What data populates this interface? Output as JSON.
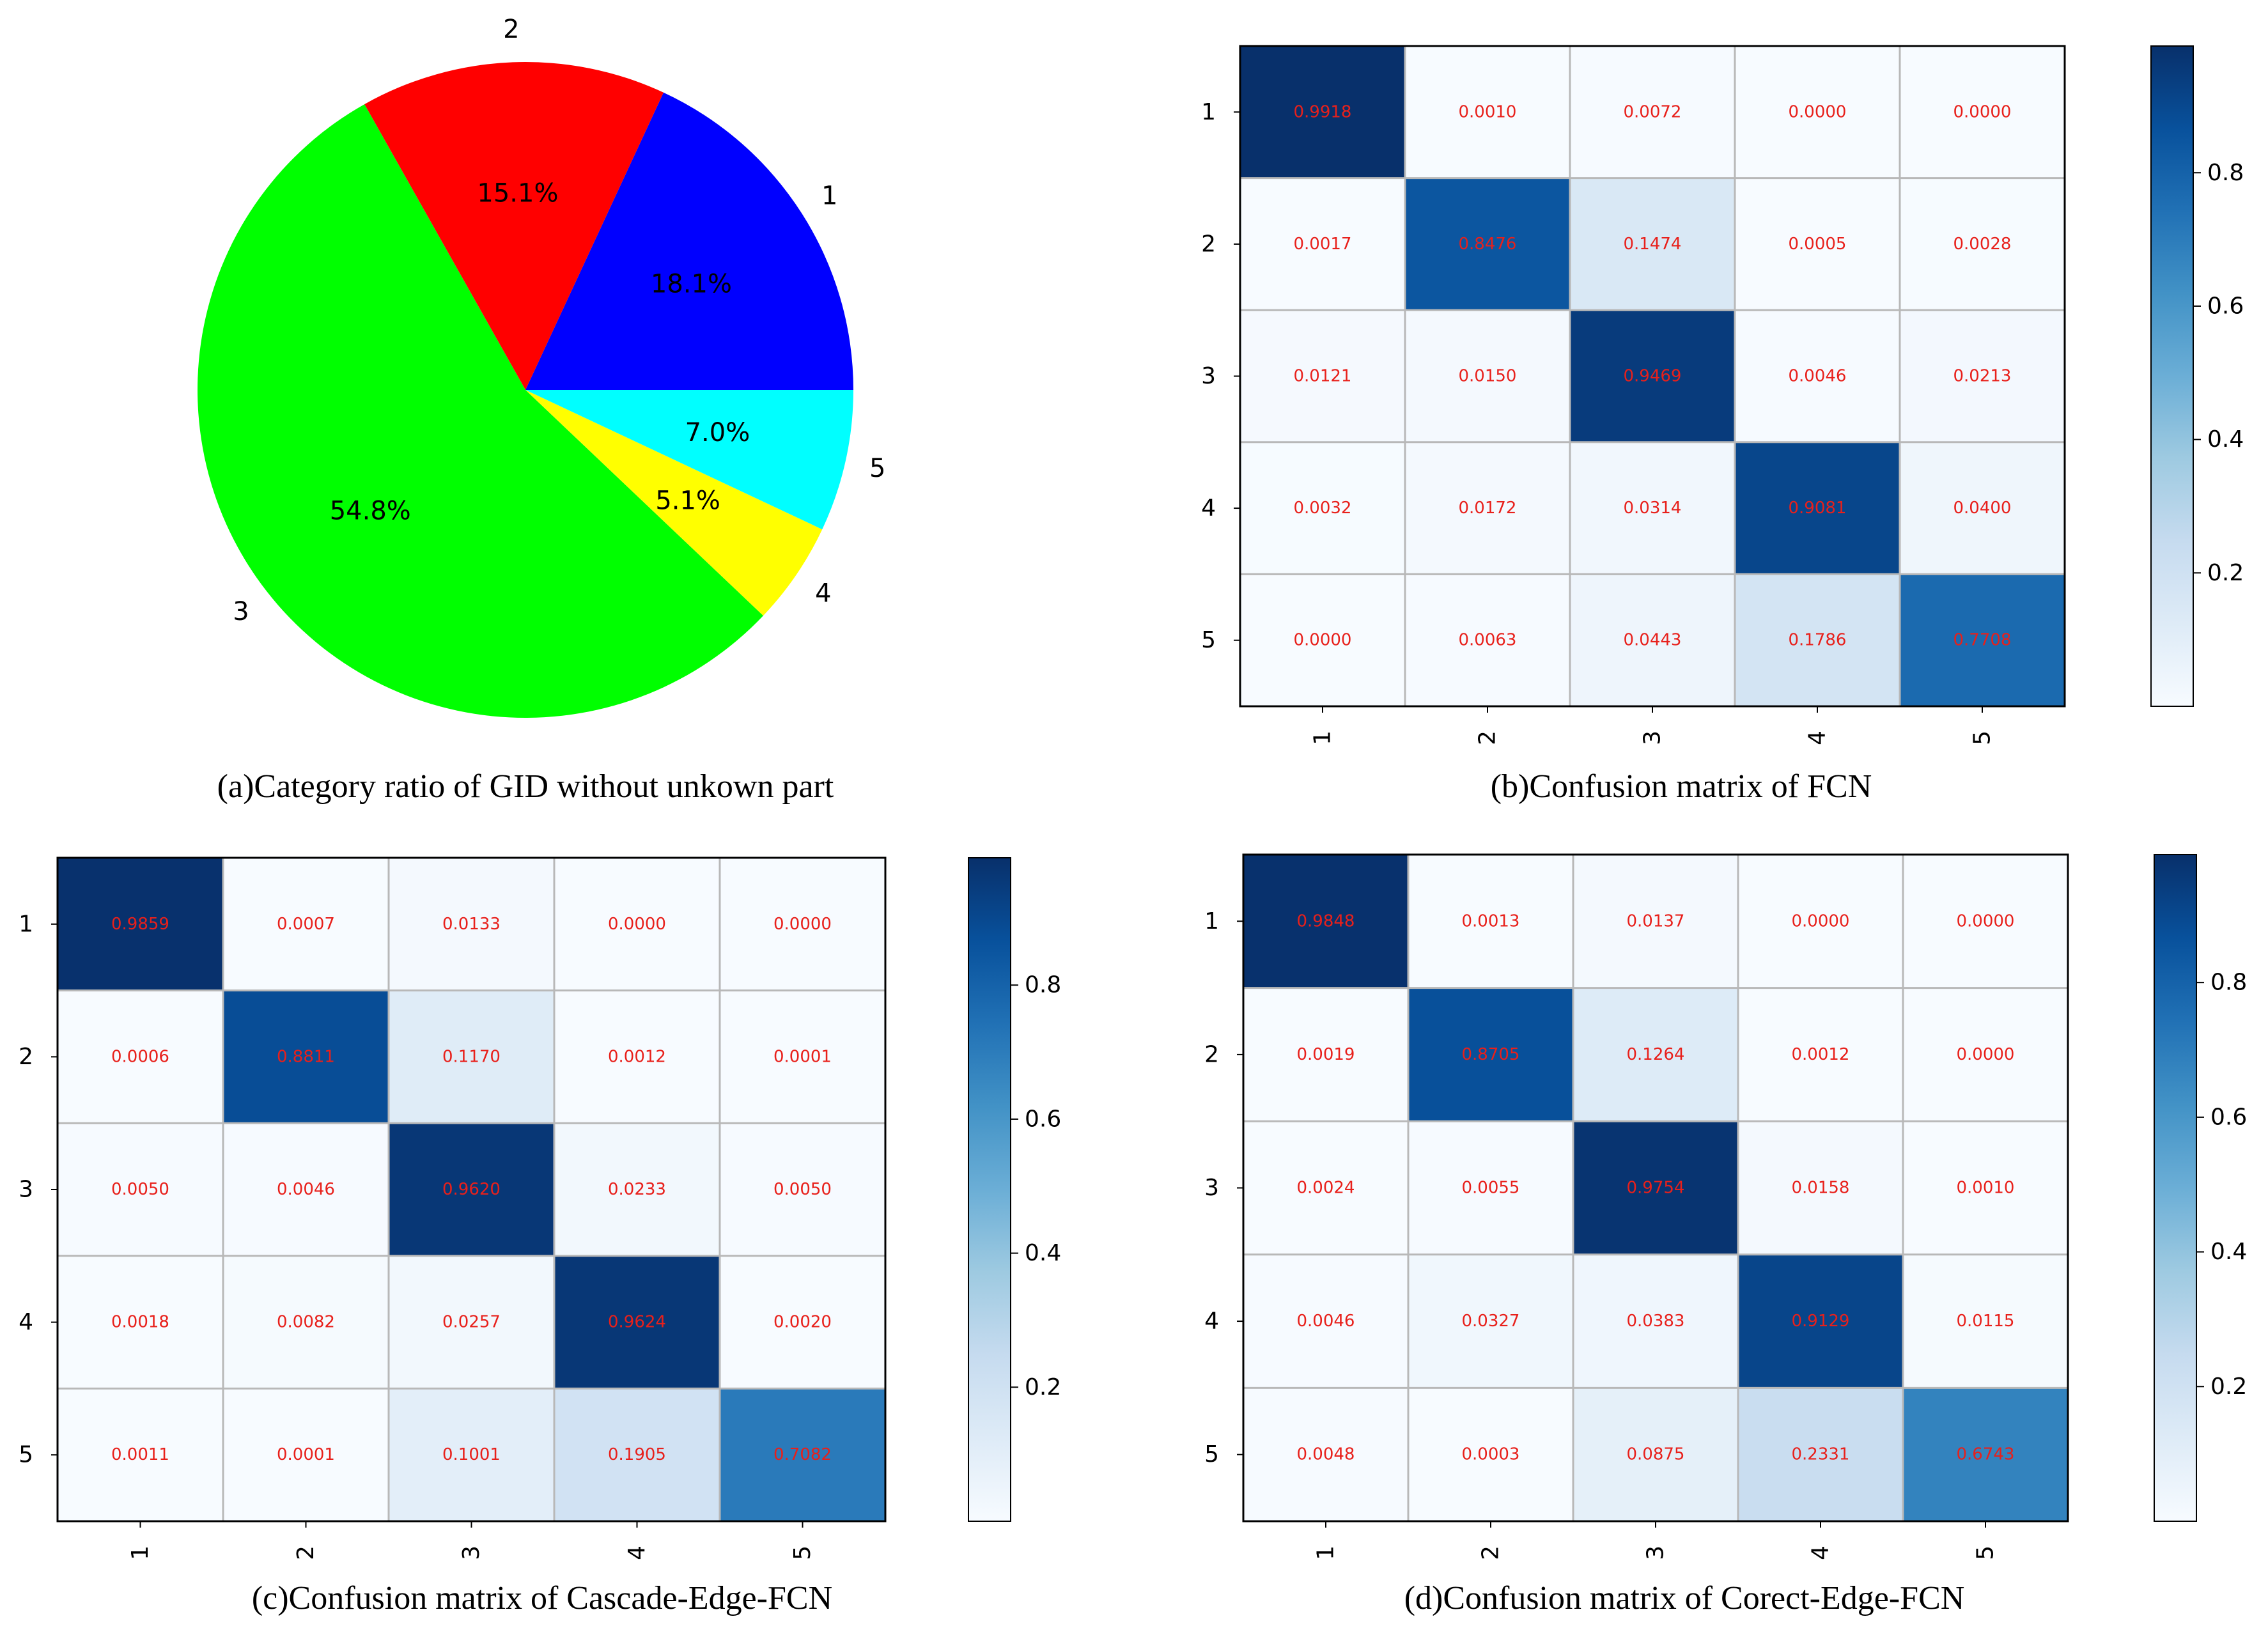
{
  "colors": {
    "cell_text": "#e8201b",
    "grid_line": "#b8b8b8",
    "colormap": "Blues"
  },
  "chart_data": [
    {
      "id": "a",
      "type": "pie",
      "title": "",
      "caption": "(a)Category ratio of GID without unkown part",
      "labels": [
        "1",
        "2",
        "3",
        "4",
        "5"
      ],
      "values": [
        18.1,
        15.1,
        54.8,
        5.1,
        7.0
      ],
      "pct_labels": [
        "18.1%",
        "15.1%",
        "54.8%",
        "5.1%",
        "7.0%"
      ],
      "colors": [
        "#0000ff",
        "#ff0000",
        "#00ff00",
        "#ffff00",
        "#00ffff"
      ],
      "start_angle_deg": 0,
      "direction": "counterclockwise"
    },
    {
      "id": "b",
      "type": "heatmap",
      "caption": "(b)Confusion matrix of  FCN",
      "row_labels": [
        "1",
        "2",
        "3",
        "4",
        "5"
      ],
      "col_labels": [
        "1",
        "2",
        "3",
        "4",
        "5"
      ],
      "values": [
        [
          0.9918,
          0.001,
          0.0072,
          0.0,
          0.0
        ],
        [
          0.0017,
          0.8476,
          0.1474,
          0.0005,
          0.0028
        ],
        [
          0.0121,
          0.015,
          0.9469,
          0.0046,
          0.0213
        ],
        [
          0.0032,
          0.0172,
          0.0314,
          0.9081,
          0.04
        ],
        [
          0.0,
          0.0063,
          0.0443,
          0.1786,
          0.7708
        ]
      ],
      "value_labels": [
        [
          "0.9918",
          "0.0010",
          "0.0072",
          "0.0000",
          "0.0000"
        ],
        [
          "0.0017",
          "0.8476",
          "0.1474",
          "0.0005",
          "0.0028"
        ],
        [
          "0.0121",
          "0.0150",
          "0.9469",
          "0.0046",
          "0.0213"
        ],
        [
          "0.0032",
          "0.0172",
          "0.0314",
          "0.9081",
          "0.0400"
        ],
        [
          "0.0000",
          "0.0063",
          "0.0443",
          "0.1786",
          "0.7708"
        ]
      ],
      "colorbar": {
        "range": [
          0.0,
          0.99
        ],
        "ticks": [
          0.2,
          0.4,
          0.6,
          0.8
        ],
        "tick_labels": [
          "0.2",
          "0.4",
          "0.6",
          "0.8"
        ]
      }
    },
    {
      "id": "c",
      "type": "heatmap",
      "caption": "(c)Confusion matrix of  Cascade-Edge-FCN",
      "row_labels": [
        "1",
        "2",
        "3",
        "4",
        "5"
      ],
      "col_labels": [
        "1",
        "2",
        "3",
        "4",
        "5"
      ],
      "values": [
        [
          0.9859,
          0.0007,
          0.0133,
          0.0,
          0.0
        ],
        [
          0.0006,
          0.8811,
          0.117,
          0.0012,
          0.0001
        ],
        [
          0.005,
          0.0046,
          0.962,
          0.0233,
          0.005
        ],
        [
          0.0018,
          0.0082,
          0.0257,
          0.9624,
          0.002
        ],
        [
          0.0011,
          0.0001,
          0.1001,
          0.1905,
          0.7082
        ]
      ],
      "value_labels": [
        [
          "0.9859",
          "0.0007",
          "0.0133",
          "0.0000",
          "0.0000"
        ],
        [
          "0.0006",
          "0.8811",
          "0.1170",
          "0.0012",
          "0.0001"
        ],
        [
          "0.0050",
          "0.0046",
          "0.9620",
          "0.0233",
          "0.0050"
        ],
        [
          "0.0018",
          "0.0082",
          "0.0257",
          "0.9624",
          "0.0020"
        ],
        [
          "0.0011",
          "0.0001",
          "0.1001",
          "0.1905",
          "0.7082"
        ]
      ],
      "colorbar": {
        "range": [
          0.0,
          0.99
        ],
        "ticks": [
          0.2,
          0.4,
          0.6,
          0.8
        ],
        "tick_labels": [
          "0.2",
          "0.4",
          "0.6",
          "0.8"
        ]
      }
    },
    {
      "id": "d",
      "type": "heatmap",
      "caption": "(d)Confusion matrix of  Corect-Edge-FCN",
      "row_labels": [
        "1",
        "2",
        "3",
        "4",
        "5"
      ],
      "col_labels": [
        "1",
        "2",
        "3",
        "4",
        "5"
      ],
      "values": [
        [
          0.9848,
          0.0013,
          0.0137,
          0.0,
          0.0
        ],
        [
          0.0019,
          0.8705,
          0.1264,
          0.0012,
          0.0
        ],
        [
          0.0024,
          0.0055,
          0.9754,
          0.0158,
          0.001
        ],
        [
          0.0046,
          0.0327,
          0.0383,
          0.9129,
          0.0115
        ],
        [
          0.0048,
          0.0003,
          0.0875,
          0.2331,
          0.6743
        ]
      ],
      "value_labels": [
        [
          "0.9848",
          "0.0013",
          "0.0137",
          "0.0000",
          "0.0000"
        ],
        [
          "0.0019",
          "0.8705",
          "0.1264",
          "0.0012",
          "0.0000"
        ],
        [
          "0.0024",
          "0.0055",
          "0.9754",
          "0.0158",
          "0.0010"
        ],
        [
          "0.0046",
          "0.0327",
          "0.0383",
          "0.9129",
          "0.0115"
        ],
        [
          "0.0048",
          "0.0003",
          "0.0875",
          "0.2331",
          "0.6743"
        ]
      ],
      "colorbar": {
        "range": [
          0.0,
          0.99
        ],
        "ticks": [
          0.2,
          0.4,
          0.6,
          0.8
        ],
        "tick_labels": [
          "0.2",
          "0.4",
          "0.6",
          "0.8"
        ]
      }
    }
  ]
}
